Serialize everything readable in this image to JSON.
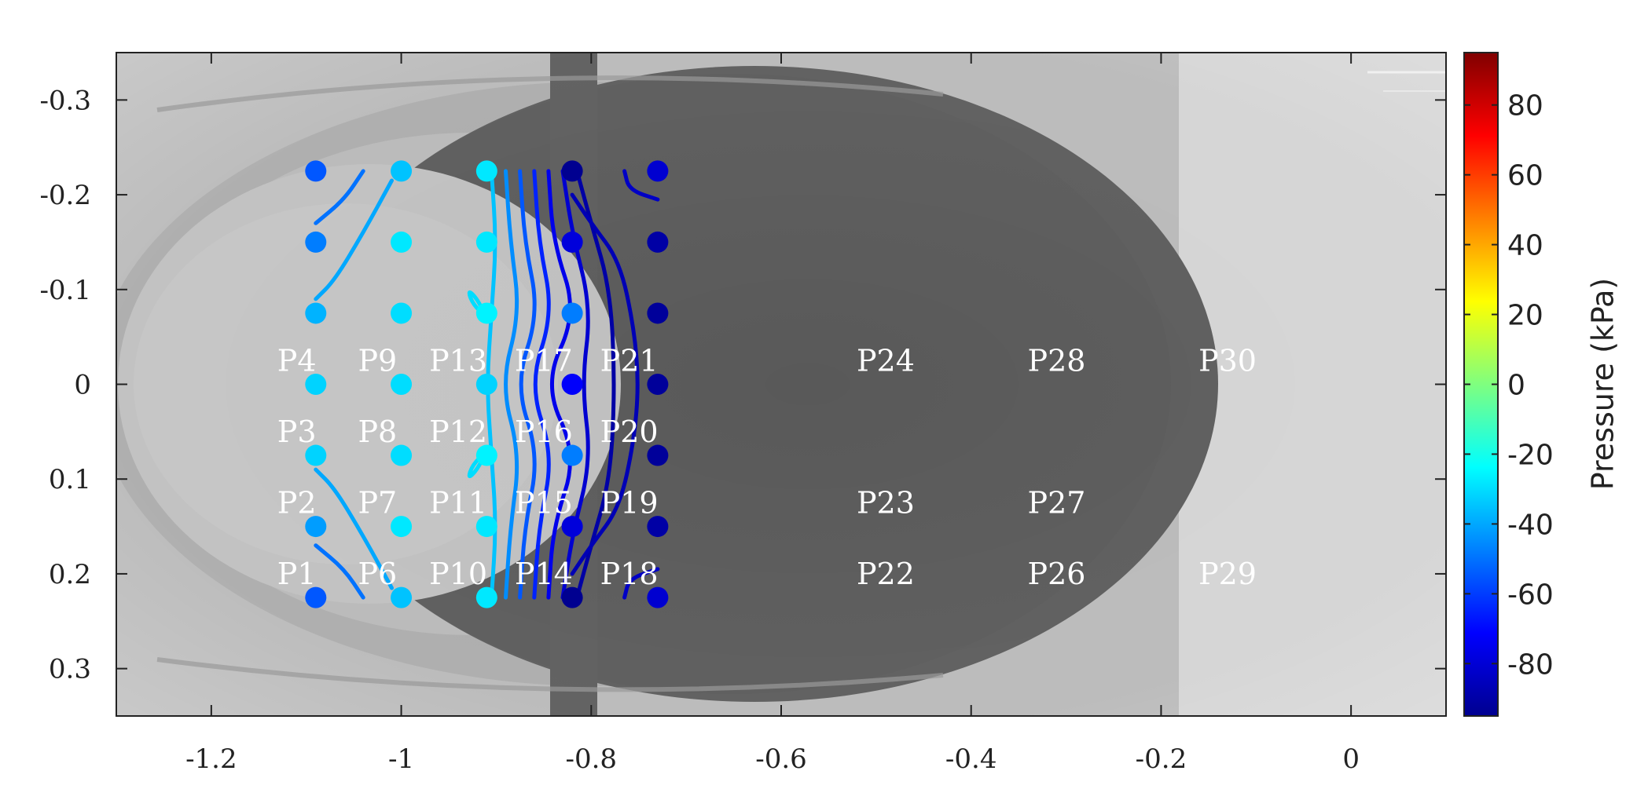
{
  "chart_data": {
    "type": "scatter",
    "title": "",
    "xlabel": "",
    "ylabel": "",
    "xlim": [
      -1.3,
      0.1
    ],
    "ylim": [
      -0.35,
      0.35
    ],
    "y_reversed": true,
    "x_ticks": [
      "-1.2",
      "-1",
      "-0.8",
      "-0.6",
      "-0.4",
      "-0.2",
      "0"
    ],
    "x_tick_values": [
      -1.2,
      -1.0,
      -0.8,
      -0.6,
      -0.4,
      -0.2,
      0.0
    ],
    "y_ticks": [
      "-0.3",
      "-0.2",
      "-0.1",
      "0",
      "0.1",
      "0.2",
      "0.3"
    ],
    "y_tick_values": [
      -0.3,
      -0.2,
      -0.1,
      0.0,
      0.1,
      0.2,
      0.3
    ],
    "background": "grayscale photograph of a dark ellipsoidal cavity",
    "colormap": "jet",
    "colorbar": {
      "label": "Pressure (kPa)",
      "range": [
        -95,
        95
      ],
      "ticks": [
        "80",
        "60",
        "40",
        "20",
        "0",
        "-20",
        "-40",
        "-60",
        "-80"
      ],
      "tick_values": [
        80,
        60,
        40,
        20,
        0,
        -20,
        -40,
        -60,
        -80
      ]
    },
    "sensor_labels": [
      {
        "text": "P4",
        "x": -1.11,
        "y": -0.025
      },
      {
        "text": "P9",
        "x": -1.025,
        "y": -0.025
      },
      {
        "text": "P13",
        "x": -0.94,
        "y": -0.025
      },
      {
        "text": "P17",
        "x": -0.85,
        "y": -0.025
      },
      {
        "text": "P21",
        "x": -0.76,
        "y": -0.025
      },
      {
        "text": "P24",
        "x": -0.49,
        "y": -0.025
      },
      {
        "text": "P28",
        "x": -0.31,
        "y": -0.025
      },
      {
        "text": "P30",
        "x": -0.13,
        "y": -0.025
      },
      {
        "text": "P3",
        "x": -1.11,
        "y": 0.05
      },
      {
        "text": "P8",
        "x": -1.025,
        "y": 0.05
      },
      {
        "text": "P12",
        "x": -0.94,
        "y": 0.05
      },
      {
        "text": "P16",
        "x": -0.85,
        "y": 0.05
      },
      {
        "text": "P20",
        "x": -0.76,
        "y": 0.05
      },
      {
        "text": "P2",
        "x": -1.11,
        "y": 0.125
      },
      {
        "text": "P7",
        "x": -1.025,
        "y": 0.125
      },
      {
        "text": "P11",
        "x": -0.94,
        "y": 0.125
      },
      {
        "text": "P15",
        "x": -0.85,
        "y": 0.125
      },
      {
        "text": "P19",
        "x": -0.76,
        "y": 0.125
      },
      {
        "text": "P23",
        "x": -0.49,
        "y": 0.125
      },
      {
        "text": "P27",
        "x": -0.31,
        "y": 0.125
      },
      {
        "text": "P1",
        "x": -1.11,
        "y": 0.2
      },
      {
        "text": "P6",
        "x": -1.025,
        "y": 0.2
      },
      {
        "text": "P10",
        "x": -0.94,
        "y": 0.2
      },
      {
        "text": "P14",
        "x": -0.85,
        "y": 0.2
      },
      {
        "text": "P18",
        "x": -0.76,
        "y": 0.2
      },
      {
        "text": "P22",
        "x": -0.49,
        "y": 0.2
      },
      {
        "text": "P26",
        "x": -0.31,
        "y": 0.2
      },
      {
        "text": "P29",
        "x": -0.13,
        "y": 0.2
      }
    ],
    "points": [
      {
        "x": -1.09,
        "y": -0.225,
        "pressure": -55
      },
      {
        "x": -1.09,
        "y": -0.15,
        "pressure": -48
      },
      {
        "x": -1.09,
        "y": -0.075,
        "pressure": -38
      },
      {
        "x": -1.09,
        "y": 0.0,
        "pressure": -32
      },
      {
        "x": -1.09,
        "y": 0.075,
        "pressure": -32
      },
      {
        "x": -1.09,
        "y": 0.15,
        "pressure": -42
      },
      {
        "x": -1.09,
        "y": 0.225,
        "pressure": -55
      },
      {
        "x": -1.0,
        "y": -0.225,
        "pressure": -35
      },
      {
        "x": -1.0,
        "y": -0.15,
        "pressure": -28
      },
      {
        "x": -1.0,
        "y": -0.075,
        "pressure": -30
      },
      {
        "x": -1.0,
        "y": 0.0,
        "pressure": -30
      },
      {
        "x": -1.0,
        "y": 0.075,
        "pressure": -30
      },
      {
        "x": -1.0,
        "y": 0.15,
        "pressure": -28
      },
      {
        "x": -1.0,
        "y": 0.225,
        "pressure": -35
      },
      {
        "x": -0.91,
        "y": -0.225,
        "pressure": -28
      },
      {
        "x": -0.91,
        "y": -0.15,
        "pressure": -28
      },
      {
        "x": -0.91,
        "y": -0.075,
        "pressure": -26
      },
      {
        "x": -0.91,
        "y": 0.0,
        "pressure": -32
      },
      {
        "x": -0.91,
        "y": 0.075,
        "pressure": -26
      },
      {
        "x": -0.91,
        "y": 0.15,
        "pressure": -28
      },
      {
        "x": -0.91,
        "y": 0.225,
        "pressure": -28
      },
      {
        "x": -0.82,
        "y": -0.225,
        "pressure": -92
      },
      {
        "x": -0.82,
        "y": -0.15,
        "pressure": -78
      },
      {
        "x": -0.82,
        "y": -0.075,
        "pressure": -48
      },
      {
        "x": -0.82,
        "y": 0.0,
        "pressure": -72
      },
      {
        "x": -0.82,
        "y": 0.075,
        "pressure": -48
      },
      {
        "x": -0.82,
        "y": 0.15,
        "pressure": -78
      },
      {
        "x": -0.82,
        "y": 0.225,
        "pressure": -92
      },
      {
        "x": -0.73,
        "y": -0.225,
        "pressure": -80
      },
      {
        "x": -0.73,
        "y": -0.15,
        "pressure": -88
      },
      {
        "x": -0.73,
        "y": -0.075,
        "pressure": -90
      },
      {
        "x": -0.73,
        "y": 0.0,
        "pressure": -90
      },
      {
        "x": -0.73,
        "y": 0.075,
        "pressure": -90
      },
      {
        "x": -0.73,
        "y": 0.15,
        "pressure": -88
      },
      {
        "x": -0.73,
        "y": 0.225,
        "pressure": -80
      }
    ],
    "contours": [
      {
        "level": -50,
        "points": [
          [
            -1.09,
            -0.17
          ],
          [
            -1.06,
            -0.195
          ],
          [
            -1.04,
            -0.225
          ]
        ]
      },
      {
        "level": -50,
        "points": [
          [
            -1.09,
            0.17
          ],
          [
            -1.06,
            0.195
          ],
          [
            -1.04,
            0.225
          ]
        ]
      },
      {
        "level": -40,
        "points": [
          [
            -1.09,
            -0.09
          ],
          [
            -1.07,
            -0.11
          ],
          [
            -1.04,
            -0.16
          ],
          [
            -1.01,
            -0.215
          ]
        ]
      },
      {
        "level": -40,
        "points": [
          [
            -1.09,
            0.09
          ],
          [
            -1.07,
            0.11
          ],
          [
            -1.04,
            0.16
          ],
          [
            -1.01,
            0.215
          ]
        ]
      },
      {
        "level": -30,
        "points": [
          [
            -0.91,
            -0.07
          ],
          [
            -0.925,
            -0.085
          ],
          [
            -0.93,
            -0.1
          ],
          [
            -0.92,
            -0.09
          ],
          [
            -0.91,
            -0.07
          ]
        ]
      },
      {
        "level": -30,
        "points": [
          [
            -0.91,
            0.07
          ],
          [
            -0.925,
            0.085
          ],
          [
            -0.93,
            0.1
          ],
          [
            -0.92,
            0.09
          ],
          [
            -0.91,
            0.07
          ]
        ]
      },
      {
        "level": -35,
        "points": [
          [
            -0.905,
            -0.225
          ],
          [
            -0.9,
            -0.15
          ],
          [
            -0.905,
            -0.075
          ],
          [
            -0.91,
            0.0
          ],
          [
            -0.905,
            0.075
          ],
          [
            -0.9,
            0.15
          ],
          [
            -0.905,
            0.225
          ]
        ]
      },
      {
        "level": -45,
        "points": [
          [
            -0.89,
            -0.225
          ],
          [
            -0.885,
            -0.15
          ],
          [
            -0.875,
            -0.075
          ],
          [
            -0.895,
            0.0
          ],
          [
            -0.875,
            0.075
          ],
          [
            -0.885,
            0.15
          ],
          [
            -0.89,
            0.225
          ]
        ]
      },
      {
        "level": -55,
        "points": [
          [
            -0.875,
            -0.225
          ],
          [
            -0.87,
            -0.15
          ],
          [
            -0.855,
            -0.075
          ],
          [
            -0.88,
            0.0
          ],
          [
            -0.855,
            0.075
          ],
          [
            -0.87,
            0.15
          ],
          [
            -0.875,
            0.225
          ]
        ]
      },
      {
        "level": -65,
        "points": [
          [
            -0.86,
            -0.225
          ],
          [
            -0.855,
            -0.15
          ],
          [
            -0.84,
            -0.075
          ],
          [
            -0.865,
            0.0
          ],
          [
            -0.84,
            0.075
          ],
          [
            -0.855,
            0.15
          ],
          [
            -0.86,
            0.225
          ]
        ]
      },
      {
        "level": -75,
        "points": [
          [
            -0.845,
            -0.225
          ],
          [
            -0.84,
            -0.15
          ],
          [
            -0.815,
            -0.075
          ],
          [
            -0.85,
            0.0
          ],
          [
            -0.815,
            0.075
          ],
          [
            -0.84,
            0.15
          ],
          [
            -0.845,
            0.225
          ]
        ]
      },
      {
        "level": -80,
        "points": [
          [
            -0.83,
            -0.225
          ],
          [
            -0.82,
            -0.16
          ],
          [
            -0.8,
            -0.08
          ],
          [
            -0.81,
            0.0
          ],
          [
            -0.8,
            0.08
          ],
          [
            -0.82,
            0.16
          ],
          [
            -0.83,
            0.225
          ]
        ]
      },
      {
        "level": -88,
        "points": [
          [
            -0.815,
            -0.225
          ],
          [
            -0.8,
            -0.17
          ],
          [
            -0.78,
            -0.1
          ],
          [
            -0.775,
            0.0
          ],
          [
            -0.78,
            0.1
          ],
          [
            -0.8,
            0.17
          ],
          [
            -0.815,
            0.225
          ]
        ]
      },
      {
        "level": -85,
        "points": [
          [
            -0.82,
            -0.2
          ],
          [
            -0.8,
            -0.17
          ],
          [
            -0.77,
            -0.13
          ],
          [
            -0.755,
            -0.06
          ],
          [
            -0.75,
            0.0
          ],
          [
            -0.755,
            0.06
          ],
          [
            -0.77,
            0.13
          ],
          [
            -0.8,
            0.17
          ],
          [
            -0.82,
            0.2
          ]
        ]
      },
      {
        "level": -82,
        "points": [
          [
            -0.765,
            -0.225
          ],
          [
            -0.76,
            -0.205
          ],
          [
            -0.73,
            -0.195
          ]
        ]
      },
      {
        "level": -82,
        "points": [
          [
            -0.765,
            0.225
          ],
          [
            -0.76,
            0.205
          ],
          [
            -0.73,
            0.195
          ]
        ]
      }
    ]
  }
}
